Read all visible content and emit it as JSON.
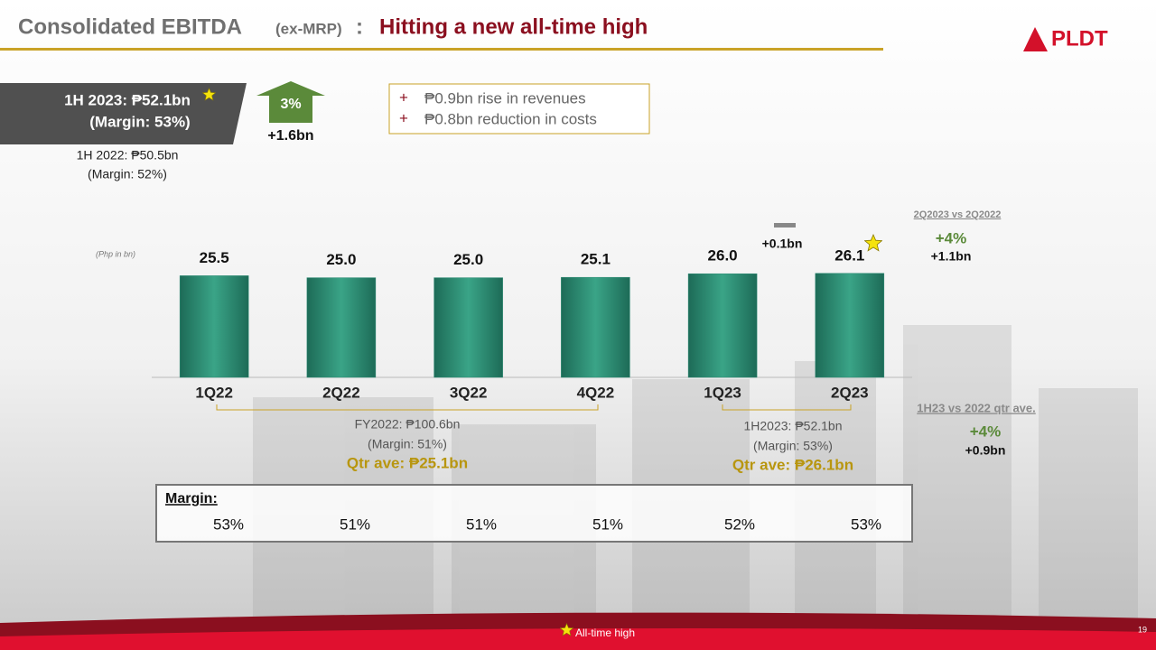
{
  "header": {
    "title": "Consolidated EBITDA",
    "title_note": "(ex-MRP)",
    "title_sep": ":",
    "subtitle": "Hitting a new all-time high",
    "logo": "PLDT"
  },
  "summary": {
    "current": "1H 2023: ₱52.1bn",
    "current_margin": "(Margin: 53%)",
    "previous": "1H 2022: ₱50.5bn",
    "previous_margin": "(Margin: 52%)",
    "growth_pct": "3%",
    "growth_abs": "+1.6bn"
  },
  "drivers": [
    {
      "sign": "+",
      "text": "₱0.9bn rise in revenues"
    },
    {
      "sign": "+",
      "text": "₱0.8bn reduction in costs"
    }
  ],
  "chart_data": {
    "type": "bar",
    "unit_label": "(Php in bn)",
    "categories": [
      "1Q22",
      "2Q22",
      "3Q22",
      "4Q22",
      "1Q23",
      "2Q23"
    ],
    "values": [
      25.5,
      25.0,
      25.0,
      25.1,
      26.0,
      26.1
    ],
    "value_labels": [
      "25.5",
      "25.0",
      "25.0",
      "25.1",
      "26.0",
      "26.1"
    ],
    "color": "#2a8a72",
    "ylim": [
      0,
      26.5
    ],
    "qoq_change": "+0.1bn"
  },
  "brackets": [
    {
      "line1": "FY2022: ₱100.6bn",
      "line2": "(Margin: 51%)",
      "average": "Qtr ave: ₱25.1bn"
    },
    {
      "line1": "1H2023: ₱52.1bn",
      "line2": "(Margin: 53%)",
      "average": "Qtr ave: ₱26.1bn"
    }
  ],
  "comparisons": [
    {
      "title": "2Q2023 vs 2Q2022",
      "pct": "+4%",
      "abs": "+1.1bn"
    },
    {
      "title": "1H23 vs 2022 qtr ave.",
      "pct": "+4%",
      "abs": "+0.9bn"
    }
  ],
  "margin_table": {
    "title": "Margin:",
    "values": [
      "53%",
      "51%",
      "51%",
      "51%",
      "52%",
      "53%"
    ]
  },
  "footer": {
    "legend": "All-time high",
    "page": "19"
  }
}
